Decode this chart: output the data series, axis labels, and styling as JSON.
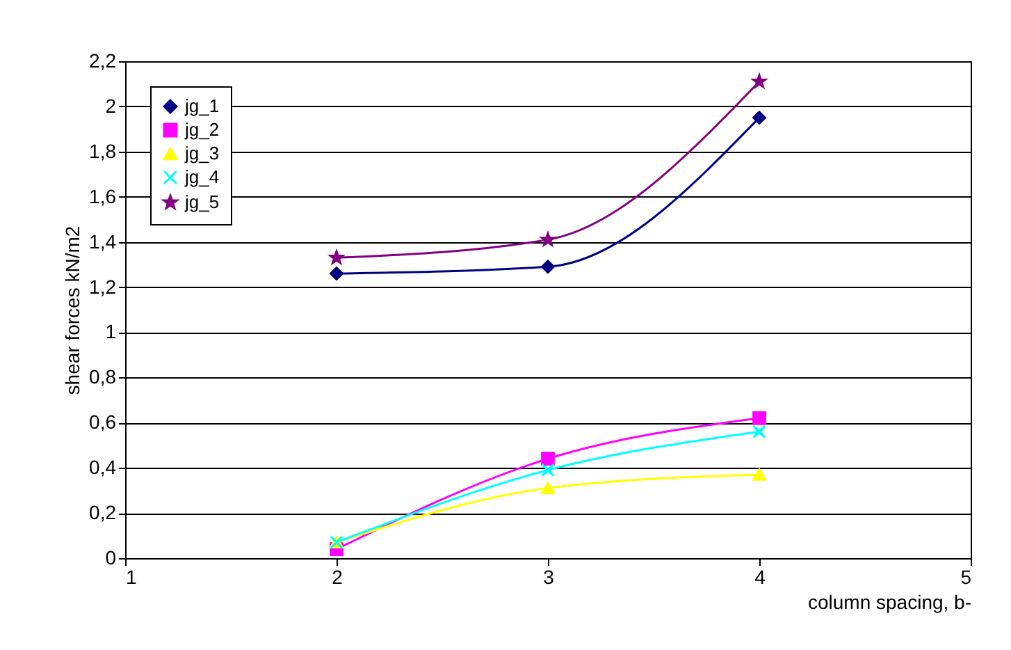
{
  "chart_data": {
    "type": "line",
    "xlabel": "column spacing, b-",
    "ylabel": "shear forces kN/m2",
    "x": [
      2,
      3,
      4
    ],
    "series": [
      {
        "name": "jg_1",
        "color": "#000080",
        "marker": "diamond",
        "values": [
          1.26,
          1.29,
          1.95
        ]
      },
      {
        "name": "jg_2",
        "color": "#ff00ff",
        "marker": "square",
        "values": [
          0.04,
          0.44,
          0.62
        ]
      },
      {
        "name": "jg_3",
        "color": "#ffff00",
        "marker": "triangle",
        "values": [
          0.07,
          0.31,
          0.37
        ]
      },
      {
        "name": "jg_4",
        "color": "#00ffff",
        "marker": "cross",
        "values": [
          0.07,
          0.39,
          0.56
        ]
      },
      {
        "name": "jg_5",
        "color": "#800080",
        "marker": "star",
        "values": [
          1.33,
          1.41,
          2.11
        ]
      }
    ],
    "xlim": [
      1,
      5
    ],
    "xticks": [
      1,
      2,
      3,
      4,
      5
    ],
    "ylim": [
      0,
      2.2
    ],
    "yticks": [
      0,
      {
        "value": 0.2,
        "label": "0,2"
      },
      {
        "value": 0.4,
        "label": "0,4"
      },
      {
        "value": 0.6,
        "label": "0,6"
      },
      {
        "value": 0.8,
        "label": "0,8"
      },
      1,
      {
        "value": 1.2,
        "label": "1,2"
      },
      {
        "value": 1.4,
        "label": "1,4"
      },
      {
        "value": 1.6,
        "label": "1,6"
      },
      {
        "value": 1.8,
        "label": "1,8"
      },
      2,
      {
        "value": 2.2,
        "label": "2,2"
      }
    ],
    "grid": "y",
    "legend": "top left",
    "line_style": "solid"
  }
}
